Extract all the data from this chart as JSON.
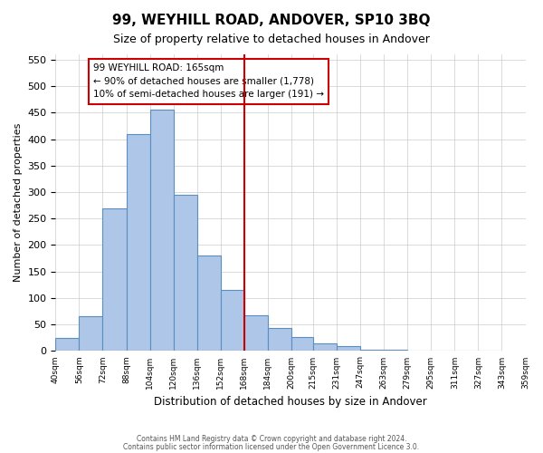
{
  "title": "99, WEYHILL ROAD, ANDOVER, SP10 3BQ",
  "subtitle": "Size of property relative to detached houses in Andover",
  "xlabel": "Distribution of detached houses by size in Andover",
  "ylabel": "Number of detached properties",
  "bar_values": [
    25,
    65,
    270,
    410,
    455,
    295,
    180,
    115,
    67,
    44,
    26,
    15,
    10,
    3,
    2,
    1,
    1,
    0,
    1
  ],
  "bin_left_edges": [
    40,
    56,
    72,
    88,
    104,
    120,
    136,
    152,
    168,
    184,
    200,
    215,
    231,
    247,
    263,
    279,
    295,
    311,
    327
  ],
  "bin_widths": [
    16,
    16,
    16,
    16,
    16,
    16,
    16,
    16,
    16,
    16,
    15,
    16,
    16,
    16,
    16,
    16,
    16,
    16,
    16
  ],
  "bin_edges_all": [
    40,
    56,
    72,
    88,
    104,
    120,
    136,
    152,
    168,
    184,
    200,
    215,
    231,
    247,
    263,
    279,
    295,
    311,
    327,
    343,
    359
  ],
  "tick_labels": [
    "40sqm",
    "56sqm",
    "72sqm",
    "88sqm",
    "104sqm",
    "120sqm",
    "136sqm",
    "152sqm",
    "168sqm",
    "184sqm",
    "200sqm",
    "215sqm",
    "231sqm",
    "247sqm",
    "263sqm",
    "279sqm",
    "295sqm",
    "311sqm",
    "327sqm",
    "343sqm",
    "359sqm"
  ],
  "bar_color": "#aec6e8",
  "bar_edge_color": "#5a8fc2",
  "vline_x": 168,
  "vline_color": "#cc0000",
  "ylim": [
    0,
    560
  ],
  "yticks": [
    0,
    50,
    100,
    150,
    200,
    250,
    300,
    350,
    400,
    450,
    500,
    550
  ],
  "annotation_title": "99 WEYHILL ROAD: 165sqm",
  "annotation_line1": "← 90% of detached houses are smaller (1,778)",
  "annotation_line2": "10% of semi-detached houses are larger (191) →",
  "annotation_box_color": "#cc0000",
  "footer1": "Contains HM Land Registry data © Crown copyright and database right 2024.",
  "footer2": "Contains public sector information licensed under the Open Government Licence 3.0.",
  "background_color": "#ffffff",
  "grid_color": "#cccccc"
}
